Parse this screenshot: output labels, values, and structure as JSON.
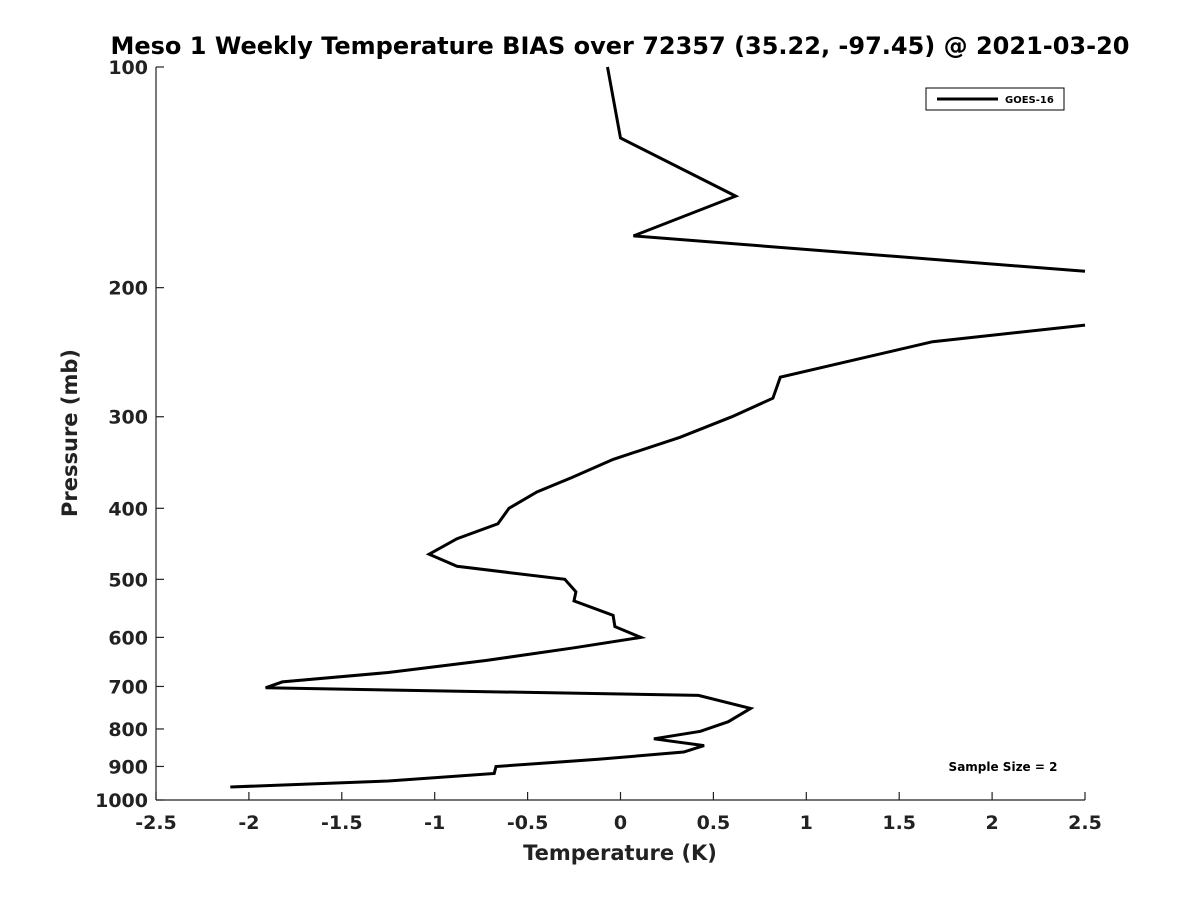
{
  "chart_data": {
    "type": "line",
    "title": "Meso 1 Weekly Temperature BIAS over 72357 (35.22, -97.45) @ 2021-03-20",
    "xlabel": "Temperature (K)",
    "ylabel": "Pressure (mb)",
    "xlim": [
      -2.5,
      2.5
    ],
    "ylim": [
      100,
      1000
    ],
    "yscale": "log",
    "yreversed": true,
    "grid": false,
    "legend_position": "top-right",
    "x_ticks": [
      -2.5,
      -2,
      -1.5,
      -1,
      -0.5,
      0,
      0.5,
      1,
      1.5,
      2,
      2.5
    ],
    "x_tick_labels": [
      "-2.5",
      "-2",
      "-1.5",
      "-1",
      "-0.5",
      "0",
      "0.5",
      "1",
      "1.5",
      "2",
      "2.5"
    ],
    "y_ticks": [
      100,
      200,
      300,
      400,
      500,
      600,
      700,
      800,
      900,
      1000
    ],
    "y_tick_labels": [
      "100",
      "200",
      "300",
      "400",
      "500",
      "600",
      "700",
      "800",
      "900",
      "1000"
    ],
    "series": [
      {
        "name": "GOES-16",
        "color": "#000000",
        "segments": [
          [
            {
              "x": -0.07,
              "y": 100
            },
            {
              "x": 0.0,
              "y": 125
            },
            {
              "x": 0.62,
              "y": 150
            },
            {
              "x": 0.07,
              "y": 170
            },
            {
              "x": 2.5,
              "y": 190
            }
          ],
          [
            {
              "x": 2.5,
              "y": 225
            },
            {
              "x": 1.68,
              "y": 237
            },
            {
              "x": 0.86,
              "y": 265
            },
            {
              "x": 0.82,
              "y": 283
            },
            {
              "x": 0.6,
              "y": 300
            },
            {
              "x": 0.32,
              "y": 320
            },
            {
              "x": -0.04,
              "y": 343
            },
            {
              "x": -0.26,
              "y": 363
            },
            {
              "x": -0.45,
              "y": 380
            },
            {
              "x": -0.6,
              "y": 400
            },
            {
              "x": -0.66,
              "y": 420
            },
            {
              "x": -0.88,
              "y": 440
            },
            {
              "x": -1.03,
              "y": 462
            },
            {
              "x": -0.88,
              "y": 480
            },
            {
              "x": -0.3,
              "y": 500
            },
            {
              "x": -0.24,
              "y": 520
            },
            {
              "x": -0.25,
              "y": 535
            },
            {
              "x": -0.04,
              "y": 560
            },
            {
              "x": -0.03,
              "y": 580
            },
            {
              "x": 0.11,
              "y": 600
            },
            {
              "x": -0.25,
              "y": 620
            },
            {
              "x": -0.72,
              "y": 645
            },
            {
              "x": -1.25,
              "y": 670
            },
            {
              "x": -1.82,
              "y": 690
            },
            {
              "x": -1.91,
              "y": 703
            },
            {
              "x": 0.42,
              "y": 720
            },
            {
              "x": 0.7,
              "y": 750
            },
            {
              "x": 0.58,
              "y": 782
            },
            {
              "x": 0.43,
              "y": 806
            },
            {
              "x": 0.18,
              "y": 825
            },
            {
              "x": 0.45,
              "y": 843
            },
            {
              "x": 0.34,
              "y": 860
            },
            {
              "x": -0.12,
              "y": 880
            },
            {
              "x": -0.67,
              "y": 900
            },
            {
              "x": -0.68,
              "y": 920
            },
            {
              "x": -1.25,
              "y": 942
            },
            {
              "x": -2.1,
              "y": 960
            }
          ]
        ]
      }
    ],
    "annotations": [
      "Sample Size = 2"
    ]
  }
}
